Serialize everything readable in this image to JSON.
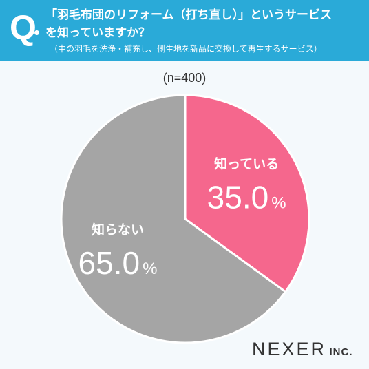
{
  "header": {
    "q_mark": "Q",
    "question_line1": "「羽毛布団のリフォーム（打ち直し）」というサービス",
    "question_line2": "を知っていますか？",
    "note": "（中の羽毛を洗浄・補充し、側生地を新品に交換して再生するサービス）"
  },
  "sample": "(n=400)",
  "logo": {
    "main": "NEXER",
    "sub": "INC."
  },
  "colors": {
    "header_bg": "#2aaad8",
    "background": "#f4f9fc",
    "slice_know": "#f5678d",
    "slice_unknown": "#a5a5a5"
  },
  "chart_data": {
    "type": "pie",
    "categories": [
      "知っている",
      "知らない"
    ],
    "values": [
      35.0,
      65.0
    ],
    "value_labels": [
      "35.0",
      "65.0"
    ],
    "unit": "%",
    "colors": [
      "#f5678d",
      "#a5a5a5"
    ],
    "start": "12 o'clock, clockwise"
  }
}
